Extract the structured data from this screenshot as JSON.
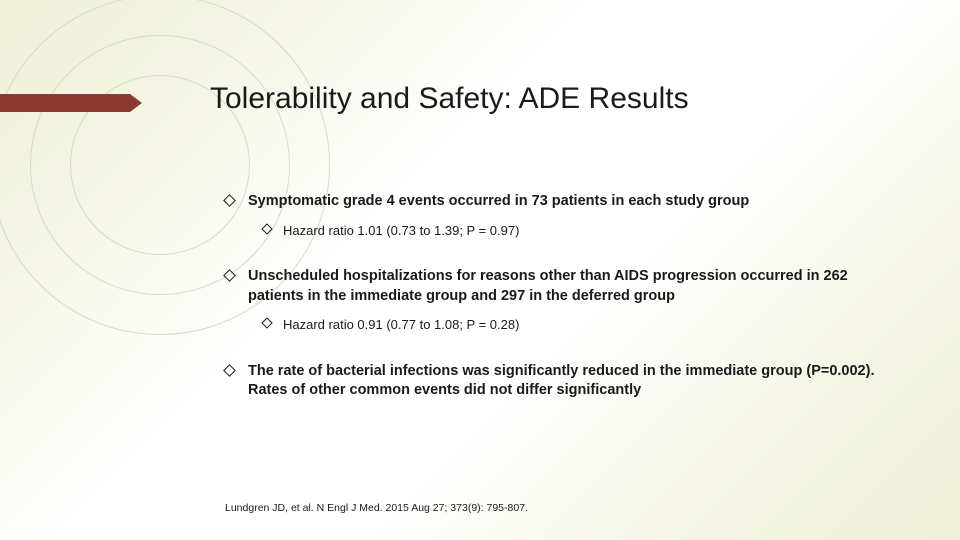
{
  "title": "Tolerability and Safety: ADE Results",
  "bullets": {
    "b1": {
      "text": "Symptomatic grade 4 events occurred in 73 patients in each study group",
      "sub": "Hazard ratio 1.01 (0.73 to 1.39; P = 0.97)"
    },
    "b2": {
      "text": "Unscheduled hospitalizations for reasons other than AIDS progression occurred in 262 patients in the immediate group and 297 in the deferred group",
      "sub": "Hazard ratio 0.91 (0.77 to 1.08; P = 0.28)"
    },
    "b3": {
      "text": "The rate of bacterial infections was significantly reduced in the immediate group (P=0.002). Rates of other common events did not differ significantly"
    }
  },
  "citation": "Lundgren JD, et al. N Engl J Med. 2015 Aug 27; 373(9): 795-807.",
  "colors": {
    "accent": "#8b3a2f",
    "bg_tint": "#eef0d8",
    "circle_stroke": "#d8dac2",
    "text": "#1a1a1a"
  }
}
